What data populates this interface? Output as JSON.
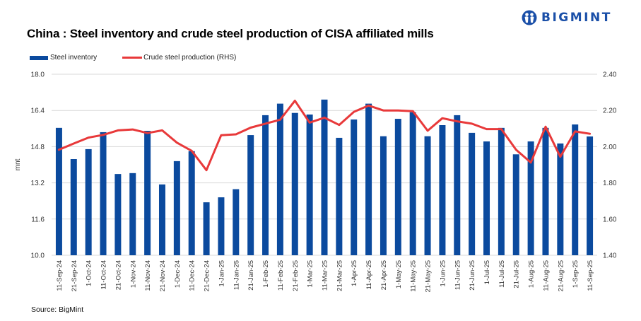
{
  "header": {
    "title": "China : Steel inventory and crude steel production of CISA affiliated mills",
    "logo_text": "BIGMINT"
  },
  "footer": {
    "source": "Source: BigMint"
  },
  "colors": {
    "bar": "#0b4a9e",
    "line": "#e8393a",
    "grid": "#d9d9d9",
    "logo": "#1a4fa8"
  },
  "chart_data": {
    "type": "bar",
    "title": "China : Steel inventory and crude steel production of CISA affiliated mills",
    "xlabel": "",
    "ylabel": "mnt",
    "y2label": "",
    "ylim": [
      10.0,
      18.0
    ],
    "y2lim": [
      1.4,
      2.4
    ],
    "yticks": [
      "10.0",
      "11.6",
      "13.2",
      "14.8",
      "16.4",
      "18.0"
    ],
    "y2ticks": [
      "1.40",
      "1.60",
      "1.80",
      "2.00",
      "2.20",
      "2.40"
    ],
    "grid": true,
    "legend_position": "top-left",
    "categories": [
      "11-Sep-24",
      "21-Sep-24",
      "1-Oct-24",
      "11-Oct-24",
      "21-Oct-24",
      "1-Nov-24",
      "11-Nov-24",
      "21-Nov-24",
      "1-Dec-24",
      "11-Dec-24",
      "21-Dec-24",
      "1-Jan-25",
      "11-Jan-25",
      "21-Jan-25",
      "1-Feb-25",
      "11-Feb-25",
      "21-Feb-25",
      "1-Mar-25",
      "11-Mar-25",
      "21-Mar-25",
      "1-Apr-25",
      "11-Apr-25",
      "21-Apr-25",
      "1-May-25",
      "11-May-25",
      "21-May-25",
      "1-Jun-25",
      "11-Jun-25",
      "21-Jun-25",
      "1-Jul-25",
      "11-Jul-25",
      "21-Jul-25",
      "1-Aug-25",
      "11-Aug-25",
      "21-Aug-25",
      "1-Sep-25",
      "11-Sep-25"
    ],
    "series": [
      {
        "name": "Steel inventory",
        "type": "bar",
        "axis": "left",
        "values": [
          15.63,
          14.25,
          14.69,
          15.44,
          13.59,
          13.63,
          15.5,
          13.13,
          14.16,
          14.6,
          12.34,
          12.56,
          12.92,
          15.31,
          16.19,
          16.7,
          16.29,
          16.22,
          16.88,
          15.19,
          16.0,
          16.7,
          15.26,
          16.03,
          16.32,
          15.26,
          15.75,
          16.19,
          15.41,
          15.03,
          15.63,
          14.46,
          15.03,
          15.63,
          14.94,
          15.78,
          15.25
        ]
      },
      {
        "name": "Crude steel production (RHS)",
        "type": "line",
        "axis": "right",
        "values": [
          1.983,
          2.017,
          2.05,
          2.065,
          2.09,
          2.095,
          2.075,
          2.09,
          2.022,
          1.977,
          1.87,
          2.063,
          2.068,
          2.105,
          2.127,
          2.149,
          2.254,
          2.133,
          2.16,
          2.12,
          2.192,
          2.227,
          2.2,
          2.2,
          2.196,
          2.088,
          2.157,
          2.14,
          2.127,
          2.097,
          2.097,
          1.983,
          1.912,
          2.11,
          1.944,
          2.084,
          2.071
        ]
      }
    ]
  }
}
